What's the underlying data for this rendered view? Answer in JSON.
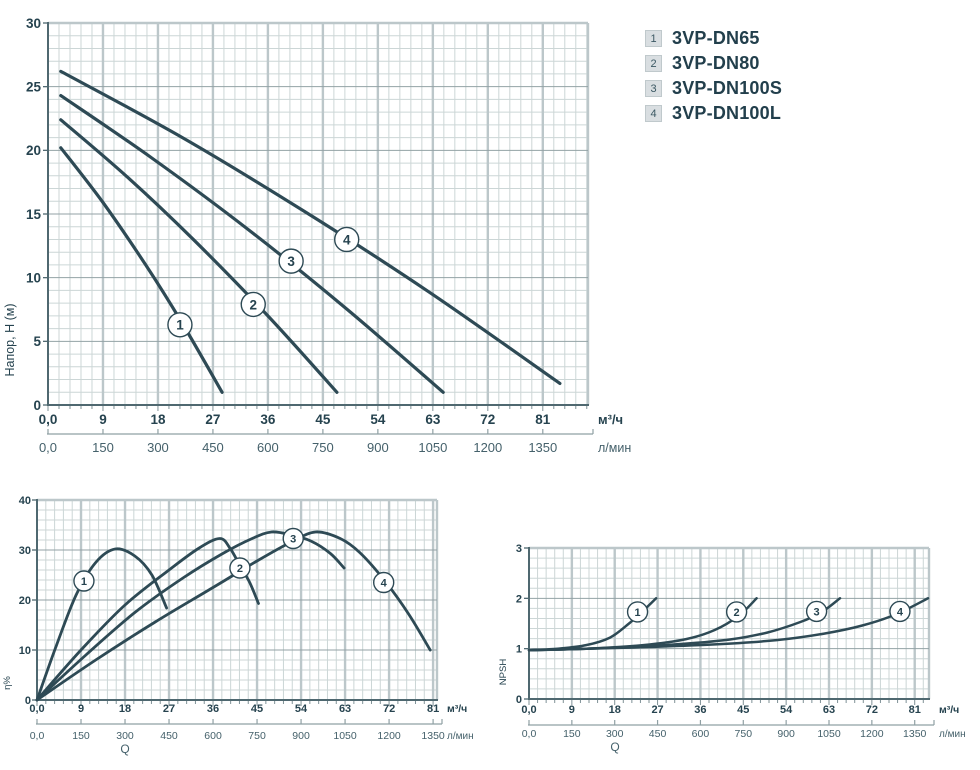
{
  "legend": {
    "items": [
      {
        "key": "1",
        "label": "3VP-DN65"
      },
      {
        "key": "2",
        "label": "3VP-DN80"
      },
      {
        "key": "3",
        "label": "3VP-DN100S"
      },
      {
        "key": "4",
        "label": "3VP-DN100L"
      }
    ]
  },
  "colors": {
    "ink": "#26434f",
    "curve": "#2e4a55",
    "grid_minor": "#ccd6d6",
    "grid_major_h": "#93a2a5",
    "grid_major_v": "#bcc7ca",
    "axis": "#4f6870",
    "tick": "#7f9196",
    "bracket": "#8fa0a4",
    "secondary_text": "#45616b",
    "marker_fill": "#ffffff"
  },
  "chart_data": [
    {
      "id": "head",
      "type": "line",
      "title": "",
      "ylabel": "Напор, Н (м)",
      "xlabel": "",
      "xlim": [
        0,
        88.4
      ],
      "ylim": [
        0,
        30
      ],
      "grid": true,
      "y_axis": {
        "tick_labels": [
          "0",
          "5",
          "10",
          "15",
          "20",
          "25",
          "30"
        ],
        "tick_values": [
          0,
          5,
          10,
          15,
          20,
          25,
          30
        ]
      },
      "x_axis": {
        "unit": "м³/ч",
        "tick_labels": [
          "0,0",
          "9",
          "18",
          "27",
          "36",
          "45",
          "54",
          "63",
          "72",
          "81"
        ],
        "tick_values": [
          0,
          9,
          18,
          27,
          36,
          45,
          54,
          63,
          72,
          81
        ]
      },
      "x_axis2": {
        "unit": "л/мин",
        "tick_labels": [
          "0,0",
          "150",
          "300",
          "450",
          "600",
          "750",
          "900",
          "1050",
          "1200",
          "1350"
        ]
      },
      "series": [
        {
          "name": "1",
          "points": [
            [
              2.1,
              20.2
            ],
            [
              9,
              15.9
            ],
            [
              16,
              11.0
            ],
            [
              22,
              6.4
            ],
            [
              28.5,
              1.0
            ]
          ],
          "marker": [
            21.6,
            6.3
          ]
        },
        {
          "name": "2",
          "points": [
            [
              2.1,
              22.4
            ],
            [
              13,
              17.9
            ],
            [
              24,
              12.9
            ],
            [
              36,
              7.0
            ],
            [
              47.3,
              1.0
            ]
          ],
          "marker": [
            33.6,
            7.9
          ]
        },
        {
          "name": "3",
          "points": [
            [
              2.1,
              24.3
            ],
            [
              17,
              19.4
            ],
            [
              33,
              13.7
            ],
            [
              49,
              7.5
            ],
            [
              64.7,
              1.0
            ]
          ],
          "marker": [
            39.8,
            11.3
          ]
        },
        {
          "name": "4",
          "points": [
            [
              2.1,
              26.2
            ],
            [
              22,
              21.0
            ],
            [
              42,
              15.2
            ],
            [
              62,
              9.0
            ],
            [
              83.8,
              1.7
            ]
          ],
          "marker": [
            48.9,
            13.0
          ]
        }
      ]
    },
    {
      "id": "eff",
      "type": "line",
      "title": "",
      "ylabel": "η%",
      "xlabel": "Q",
      "xlim": [
        0,
        81.8
      ],
      "ylim": [
        0,
        40
      ],
      "grid": true,
      "y_axis": {
        "tick_labels": [
          "0",
          "10",
          "20",
          "30",
          "40"
        ],
        "tick_values": [
          0,
          10,
          20,
          30,
          40
        ]
      },
      "x_axis": {
        "unit": "м³/ч",
        "tick_labels": [
          "0,0",
          "9",
          "18",
          "27",
          "36",
          "45",
          "54",
          "63",
          "72",
          "81"
        ],
        "tick_values": [
          0,
          9,
          18,
          27,
          36,
          45,
          54,
          63,
          72,
          81
        ]
      },
      "x_axis2": {
        "unit": "л/мин",
        "tick_labels": [
          "0,0",
          "150",
          "300",
          "450",
          "600",
          "750",
          "900",
          "1050",
          "1200",
          "1350"
        ]
      },
      "series": [
        {
          "name": "1",
          "points": [
            [
              0,
              0
            ],
            [
              4,
              11
            ],
            [
              8,
              21
            ],
            [
              12,
              27.5
            ],
            [
              16,
              30.2
            ],
            [
              20,
              28.8
            ],
            [
              23.5,
              25
            ],
            [
              26.5,
              18.4
            ]
          ],
          "marker": [
            9.6,
            23.8
          ]
        },
        {
          "name": "2",
          "points": [
            [
              0,
              0
            ],
            [
              9,
              10
            ],
            [
              18,
              19
            ],
            [
              27,
              26
            ],
            [
              33,
              30.3
            ],
            [
              37.4,
              32.3
            ],
            [
              39.5,
              30.3
            ],
            [
              41.5,
              26.9
            ],
            [
              43.5,
              23.5
            ],
            [
              45.3,
              19.3
            ]
          ],
          "marker": [
            41.5,
            26.4
          ]
        },
        {
          "name": "3",
          "points": [
            [
              0,
              0
            ],
            [
              10,
              9
            ],
            [
              20,
              17.5
            ],
            [
              30,
              24.5
            ],
            [
              38,
              29.3
            ],
            [
              44,
              32.3
            ],
            [
              48,
              33.6
            ],
            [
              52,
              33.0
            ],
            [
              56,
              31.8
            ],
            [
              60,
              29.3
            ],
            [
              62.8,
              26.4
            ]
          ],
          "marker": [
            52.4,
            32.3
          ]
        },
        {
          "name": "4",
          "points": [
            [
              0,
              0
            ],
            [
              12,
              8
            ],
            [
              24,
              15.5
            ],
            [
              36,
              22.5
            ],
            [
              45,
              27.8
            ],
            [
              52,
              31.6
            ],
            [
              57,
              33.6
            ],
            [
              62,
              32.3
            ],
            [
              66,
              29.5
            ],
            [
              71,
              24
            ],
            [
              76,
              17.2
            ],
            [
              80.4,
              10
            ]
          ],
          "marker": [
            70.9,
            23.5
          ]
        }
      ]
    },
    {
      "id": "npsh",
      "type": "line",
      "title": "",
      "ylabel": "NPSH",
      "xlabel": "Q",
      "xlim": [
        0,
        84
      ],
      "ylim": [
        0,
        3
      ],
      "grid": true,
      "y_axis": {
        "tick_labels": [
          "0",
          "1",
          "2",
          "3"
        ],
        "tick_values": [
          0,
          1,
          2,
          3
        ]
      },
      "x_axis": {
        "unit": "м³/ч",
        "tick_labels": [
          "0,0",
          "9",
          "18",
          "27",
          "36",
          "45",
          "54",
          "63",
          "72",
          "81"
        ],
        "tick_values": [
          0,
          9,
          18,
          27,
          36,
          45,
          54,
          63,
          72,
          81
        ]
      },
      "x_axis2": {
        "unit": "л/мин",
        "tick_labels": [
          "0,0",
          "150",
          "300",
          "450",
          "600",
          "750",
          "900",
          "1050",
          "1200",
          "1350"
        ]
      },
      "series": [
        {
          "name": "1",
          "points": [
            [
              0,
              0.97
            ],
            [
              6,
              1.0
            ],
            [
              12,
              1.07
            ],
            [
              17,
              1.22
            ],
            [
              21,
              1.5
            ],
            [
              24.5,
              1.8
            ],
            [
              26.7,
              2.0
            ]
          ],
          "marker": [
            22.8,
            1.73
          ]
        },
        {
          "name": "2",
          "points": [
            [
              0,
              0.97
            ],
            [
              12,
              1.0
            ],
            [
              24,
              1.07
            ],
            [
              33,
              1.19
            ],
            [
              39,
              1.37
            ],
            [
              44,
              1.65
            ],
            [
              47.8,
              2.0
            ]
          ],
          "marker": [
            43.6,
            1.73
          ]
        },
        {
          "name": "3",
          "points": [
            [
              0,
              0.97
            ],
            [
              15,
              1.01
            ],
            [
              30,
              1.08
            ],
            [
              42,
              1.18
            ],
            [
              50,
              1.32
            ],
            [
              57,
              1.53
            ],
            [
              61.5,
              1.73
            ],
            [
              65.3,
              2.0
            ]
          ],
          "marker": [
            60.4,
            1.74
          ]
        },
        {
          "name": "4",
          "points": [
            [
              0,
              0.97
            ],
            [
              20,
              1.02
            ],
            [
              38,
              1.08
            ],
            [
              52,
              1.17
            ],
            [
              62,
              1.3
            ],
            [
              70,
              1.46
            ],
            [
              77,
              1.68
            ],
            [
              83.8,
              2.0
            ]
          ],
          "marker": [
            77.9,
            1.74
          ]
        }
      ]
    }
  ]
}
